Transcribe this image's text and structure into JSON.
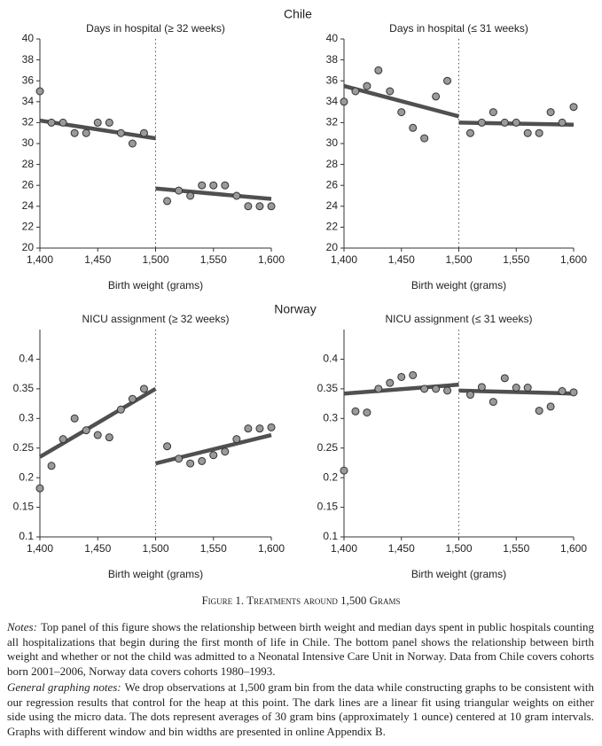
{
  "panel_headings": [
    "Chile",
    "Norway"
  ],
  "chart_data": [
    {
      "type": "scatter",
      "title": "Days in hospital (≥ 32 weeks)",
      "xlabel": "Birth weight (grams)",
      "x": [
        1400,
        1410,
        1420,
        1430,
        1440,
        1450,
        1460,
        1470,
        1480,
        1490,
        1510,
        1520,
        1530,
        1540,
        1550,
        1560,
        1570,
        1580,
        1590,
        1600
      ],
      "series": [
        {
          "color": "#9a9a9a",
          "values": [
            35,
            32,
            32,
            31,
            31,
            32,
            32,
            31,
            30,
            31,
            24.5,
            25.5,
            25,
            26,
            26,
            26,
            25,
            24,
            24,
            24
          ]
        }
      ],
      "fit_lines": [
        {
          "color": "#505050",
          "x": [
            1400,
            1500
          ],
          "values": [
            32.2,
            30.5
          ]
        },
        {
          "color": "#505050",
          "x": [
            1500,
            1600
          ],
          "values": [
            25.7,
            24.7
          ]
        }
      ],
      "cutoff_x": 1500,
      "xlim": [
        1400,
        1600
      ],
      "ylim": [
        20,
        40
      ],
      "xticks": [
        {
          "value": 1400,
          "label": "1,400"
        },
        {
          "value": 1450,
          "label": "1,450"
        },
        {
          "value": 1500,
          "label": "1,500"
        },
        {
          "value": 1550,
          "label": "1,550"
        },
        {
          "value": 1600,
          "label": "1,600"
        }
      ],
      "yticks": [
        20,
        22,
        24,
        26,
        28,
        30,
        32,
        34,
        36,
        38,
        40
      ]
    },
    {
      "type": "scatter",
      "title": "Days in hospital (≤ 31 weeks)",
      "xlabel": "Birth weight (grams)",
      "x": [
        1400,
        1410,
        1420,
        1430,
        1440,
        1450,
        1460,
        1470,
        1480,
        1490,
        1510,
        1520,
        1530,
        1540,
        1550,
        1560,
        1570,
        1580,
        1590,
        1600
      ],
      "series": [
        {
          "color": "#9a9a9a",
          "values": [
            34,
            35,
            35.5,
            37,
            35,
            33,
            31.5,
            30.5,
            34.5,
            36,
            31,
            32,
            33,
            32,
            32,
            31,
            31,
            33,
            32,
            33.5
          ]
        }
      ],
      "fit_lines": [
        {
          "color": "#505050",
          "x": [
            1400,
            1500
          ],
          "values": [
            35.5,
            32.6
          ]
        },
        {
          "color": "#505050",
          "x": [
            1500,
            1600
          ],
          "values": [
            32,
            31.8
          ]
        }
      ],
      "cutoff_x": 1500,
      "xlim": [
        1400,
        1600
      ],
      "ylim": [
        20,
        40
      ],
      "xticks": [
        {
          "value": 1400,
          "label": "1,400"
        },
        {
          "value": 1450,
          "label": "1,450"
        },
        {
          "value": 1500,
          "label": "1,500"
        },
        {
          "value": 1550,
          "label": "1,550"
        },
        {
          "value": 1600,
          "label": "1,600"
        }
      ],
      "yticks": [
        20,
        22,
        24,
        26,
        28,
        30,
        32,
        34,
        36,
        38,
        40
      ]
    },
    {
      "type": "scatter",
      "title": "NICU assignment (≥ 32 weeks)",
      "xlabel": "Birth weight (grams)",
      "x": [
        1400,
        1410,
        1420,
        1430,
        1440,
        1450,
        1460,
        1470,
        1480,
        1490,
        1510,
        1520,
        1530,
        1540,
        1550,
        1560,
        1570,
        1580,
        1590,
        1600
      ],
      "series": [
        {
          "color": "#9a9a9a",
          "values": [
            0.182,
            0.22,
            0.265,
            0.3,
            0.28,
            0.272,
            0.268,
            0.315,
            0.333,
            0.35,
            0.253,
            0.232,
            0.224,
            0.228,
            0.238,
            0.244,
            0.265,
            0.283,
            0.283,
            0.285
          ]
        }
      ],
      "fit_lines": [
        {
          "color": "#505050",
          "x": [
            1400,
            1500
          ],
          "values": [
            0.235,
            0.35
          ]
        },
        {
          "color": "#505050",
          "x": [
            1500,
            1600
          ],
          "values": [
            0.224,
            0.272
          ]
        }
      ],
      "cutoff_x": 1500,
      "xlim": [
        1400,
        1600
      ],
      "ylim": [
        0.1,
        0.45
      ],
      "xticks": [
        {
          "value": 1400,
          "label": "1,400"
        },
        {
          "value": 1450,
          "label": "1,450"
        },
        {
          "value": 1500,
          "label": "1,500"
        },
        {
          "value": 1550,
          "label": "1,550"
        },
        {
          "value": 1600,
          "label": "1,600"
        }
      ],
      "yticks": [
        0.1,
        0.15,
        0.2,
        0.25,
        0.3,
        0.35,
        0.4
      ]
    },
    {
      "type": "scatter",
      "title": "NICU assignment (≤ 31 weeks)",
      "xlabel": "Birth weight (grams)",
      "x": [
        1400,
        1410,
        1420,
        1430,
        1440,
        1450,
        1460,
        1470,
        1480,
        1490,
        1510,
        1520,
        1530,
        1540,
        1550,
        1560,
        1570,
        1580,
        1590,
        1600
      ],
      "series": [
        {
          "color": "#9a9a9a",
          "values": [
            0.212,
            0.312,
            0.31,
            0.35,
            0.36,
            0.37,
            0.373,
            0.35,
            0.35,
            0.347,
            0.34,
            0.353,
            0.328,
            0.368,
            0.352,
            0.352,
            0.313,
            0.32,
            0.346,
            0.344
          ]
        }
      ],
      "fit_lines": [
        {
          "color": "#505050",
          "x": [
            1400,
            1500
          ],
          "values": [
            0.342,
            0.357
          ]
        },
        {
          "color": "#505050",
          "x": [
            1500,
            1600
          ],
          "values": [
            0.347,
            0.342
          ]
        }
      ],
      "cutoff_x": 1500,
      "xlim": [
        1400,
        1600
      ],
      "ylim": [
        0.1,
        0.45
      ],
      "xticks": [
        {
          "value": 1400,
          "label": "1,400"
        },
        {
          "value": 1450,
          "label": "1,450"
        },
        {
          "value": 1500,
          "label": "1,500"
        },
        {
          "value": 1550,
          "label": "1,550"
        },
        {
          "value": 1600,
          "label": "1,600"
        }
      ],
      "yticks": [
        0.1,
        0.15,
        0.2,
        0.25,
        0.3,
        0.35,
        0.4
      ]
    }
  ],
  "caption": "Figure 1. Treatments around 1,500 Grams",
  "notes": [
    {
      "label": "Notes:",
      "text": "Top panel of this figure shows the relationship between birth weight and median days spent in public hospitals counting all hospitalizations that begin during the first month of life in Chile. The bottom panel shows the relationship between birth weight and whether or not the child was admitted to a Neonatal Intensive Care Unit in Norway. Data from Chile covers cohorts born 2001–2006, Norway data covers cohorts 1980–1993."
    },
    {
      "label": "General graphing notes:",
      "text": "We drop observations at 1,500 gram bin from the data while constructing graphs to be consistent with our regression results that control for the heap at this point. The dark lines are a linear fit using triangular weights on either side using the micro data. The dots represent averages of 30 gram bins (approximately 1 ounce) centered at 10 gram intervals. Graphs with different window and bin widths are presented in online Appendix B."
    }
  ]
}
